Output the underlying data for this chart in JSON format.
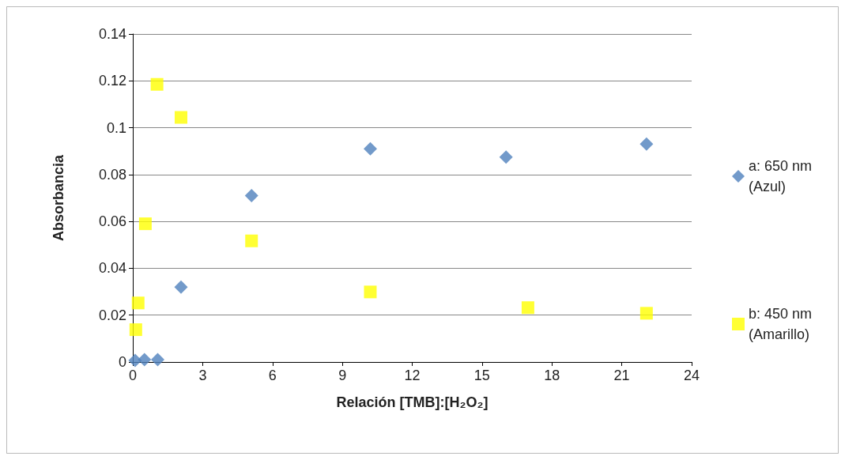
{
  "chart_data": {
    "type": "scatter",
    "xlabel": "Relación [TMB]:[H₂O₂]",
    "ylabel": "Absorbancia",
    "xlim": [
      0,
      24
    ],
    "xticks": [
      0,
      3,
      6,
      9,
      12,
      15,
      18,
      21,
      24
    ],
    "ylim": [
      0,
      0.14
    ],
    "yticks": [
      0,
      0.02,
      0.04,
      0.06,
      0.08,
      0.1,
      0.12,
      0.14
    ],
    "grid": "y",
    "legend": "right",
    "series": [
      {
        "name": "a: 650 nm (Azul)",
        "color": "#4f81bd",
        "marker": "diamond",
        "x": [
          0.1,
          0.5,
          1.07,
          2.07,
          5.1,
          10.2,
          16.03,
          22.06
        ],
        "values": [
          0.0007,
          0.001,
          0.001,
          0.032,
          0.071,
          0.091,
          0.0875,
          0.093
        ]
      },
      {
        "name": "b: 450 nm (Amarillo)",
        "color": "#ffff00",
        "marker": "square",
        "x": [
          0.13,
          0.23,
          0.54,
          1.04,
          2.07,
          5.1,
          10.2,
          16.97,
          22.06
        ],
        "values": [
          0.0138,
          0.0252,
          0.059,
          0.1185,
          0.1044,
          0.0517,
          0.0299,
          0.0232,
          0.0208
        ]
      }
    ]
  }
}
